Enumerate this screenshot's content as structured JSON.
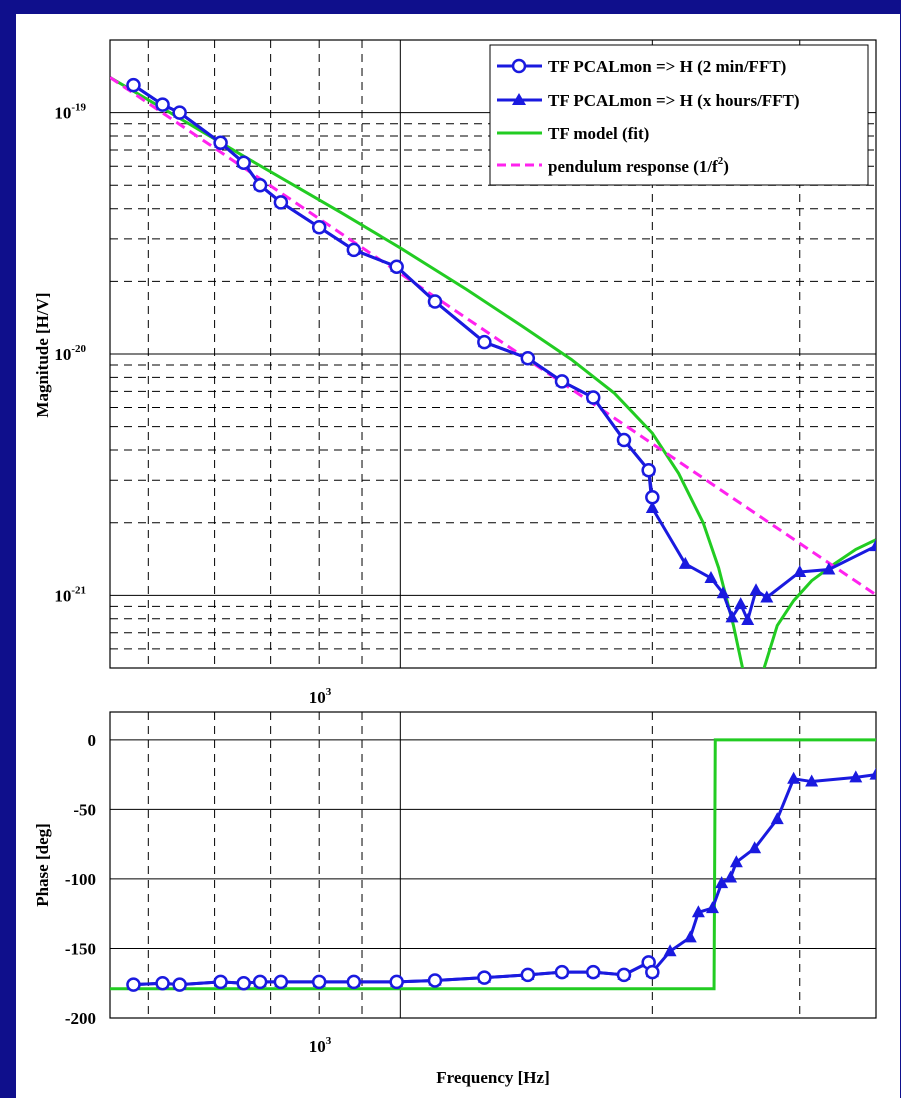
{
  "colors": {
    "background": "#0f0f8c",
    "panel": "#ffffff",
    "blue": "#1a1adf",
    "green": "#22cc22",
    "magenta": "#ff22ee",
    "grid": "#000000"
  },
  "chart_data": [
    {
      "type": "line",
      "panel": "magnitude",
      "xlabel": "",
      "ylabel": "Magnitude [H/V]",
      "xscale": "log",
      "yscale": "log",
      "xlim": [
        450,
        3700
      ],
      "ylim": [
        5e-22,
        2e-19
      ],
      "x_tick_labels": [
        {
          "base": "10",
          "exp": "3",
          "value": 1000
        }
      ],
      "y_tick_labels": [
        {
          "base": "10",
          "exp": "-19",
          "value": 1e-19
        },
        {
          "base": "10",
          "exp": "-20",
          "value": 1e-20
        },
        {
          "base": "10",
          "exp": "-21",
          "value": 1e-21
        }
      ],
      "grid": true,
      "legend_position": "top-right",
      "legend": [
        {
          "label": "TF PCALmon => H (2 min/FFT)",
          "marker": "circle",
          "color": "#1a1adf",
          "style": "solid"
        },
        {
          "label": "TF PCALmon => H (x hours/FFT)",
          "marker": "triangle",
          "color": "#1a1adf",
          "style": "solid"
        },
        {
          "label": "TF model (fit)",
          "marker": "none",
          "color": "#22cc22",
          "style": "solid"
        },
        {
          "label": "pendulum response (1/f",
          "label_sup": "2",
          "label_end": ")",
          "marker": "none",
          "color": "#ff22ee",
          "style": "dashed"
        }
      ],
      "series": [
        {
          "name": "TF PCALmon => H (2 min/FFT)",
          "marker": "circle",
          "x": [
            480,
            520,
            545,
            610,
            650,
            680,
            720,
            800,
            880,
            990,
            1100,
            1260,
            1420,
            1560,
            1700,
            1850,
            1980,
            2000
          ],
          "y": [
            1.3e-19,
            1.08e-19,
            1e-19,
            7.5e-20,
            6.2e-20,
            5e-20,
            4.25e-20,
            3.35e-20,
            2.7e-20,
            2.3e-20,
            1.65e-20,
            1.12e-20,
            9.6e-21,
            7.7e-21,
            6.6e-21,
            4.4e-21,
            3.3e-21,
            2.55e-21
          ]
        },
        {
          "name": "TF PCALmon => H (x hours/FFT)",
          "marker": "triangle",
          "x": [
            480,
            520,
            545,
            610,
            650,
            680,
            720,
            800,
            880,
            990,
            1100,
            1260,
            1420,
            1560,
            1700,
            1850,
            1980,
            2000,
            2190,
            2350,
            2430,
            2490,
            2550,
            2600,
            2660,
            2740,
            3000,
            3250,
            3700
          ],
          "y": [
            1.3e-19,
            1.08e-19,
            1e-19,
            7.5e-20,
            6.2e-20,
            5e-20,
            4.25e-20,
            3.35e-20,
            2.7e-20,
            2.3e-20,
            1.65e-20,
            1.12e-20,
            9.6e-21,
            7.7e-21,
            6.6e-21,
            4.4e-21,
            3.3e-21,
            2.3e-21,
            1.35e-21,
            1.18e-21,
            1.02e-21,
            8.1e-22,
            9.2e-22,
            7.9e-22,
            1.05e-21,
            9.8e-22,
            1.25e-21,
            1.28e-21,
            1.6e-21
          ]
        },
        {
          "name": "TF model (fit)",
          "marker": "none",
          "x": [
            450,
            550,
            650,
            750,
            850,
            1000,
            1200,
            1400,
            1600,
            1800,
            2000,
            2150,
            2300,
            2400,
            2500,
            2580,
            2650,
            2720,
            2820,
            2950,
            3100,
            3300,
            3500,
            3700
          ],
          "y": [
            1.4e-19,
            9.3e-20,
            6.6e-20,
            4.95e-20,
            3.85e-20,
            2.75e-20,
            1.85e-20,
            1.3e-20,
            9.5e-21,
            6.9e-21,
            4.7e-21,
            3.2e-21,
            2e-21,
            1.3e-21,
            7.5e-22,
            4.5e-22,
            3e-22,
            5e-22,
            7.5e-22,
            9.5e-22,
            1.15e-21,
            1.35e-21,
            1.55e-21,
            1.7e-21
          ]
        },
        {
          "name": "pendulum response (1/f^2)",
          "marker": "none",
          "style": "dashed",
          "x": [
            450,
            3700
          ],
          "y": [
            1.4e-19,
            1.005e-21
          ]
        }
      ]
    },
    {
      "type": "line",
      "panel": "phase",
      "xlabel": "Frequency [Hz]",
      "ylabel": "Phase [deg]",
      "xscale": "log",
      "xlim": [
        450,
        3700
      ],
      "ylim": [
        -200,
        20
      ],
      "x_tick_labels": [
        {
          "base": "10",
          "exp": "3",
          "value": 1000
        }
      ],
      "y_tick_labels": [
        "0",
        "-50",
        "-100",
        "-150",
        "-200"
      ],
      "y_ticks": [
        0,
        -50,
        -100,
        -150,
        -200
      ],
      "grid": true,
      "series": [
        {
          "name": "TF PCALmon => H (2 min/FFT)",
          "marker": "circle",
          "x": [
            480,
            520,
            545,
            610,
            650,
            680,
            720,
            800,
            880,
            990,
            1100,
            1260,
            1420,
            1560,
            1700,
            1850,
            1980,
            2000
          ],
          "y": [
            -176,
            -175,
            -176,
            -174,
            -175,
            -174,
            -174,
            -174,
            -174,
            -174,
            -173,
            -171,
            -169,
            -167,
            -167,
            -169,
            -160,
            -167
          ]
        },
        {
          "name": "TF PCALmon => H (x hours/FFT)",
          "marker": "triangle",
          "x": [
            480,
            520,
            545,
            610,
            650,
            680,
            720,
            800,
            880,
            990,
            1100,
            1260,
            1420,
            1560,
            1700,
            1850,
            1980,
            2000,
            2100,
            2220,
            2270,
            2360,
            2420,
            2480,
            2520,
            2650,
            2820,
            2950,
            3100,
            3500,
            3700
          ],
          "y": [
            -176,
            -175,
            -176,
            -174,
            -175,
            -174,
            -174,
            -174,
            -174,
            -174,
            -173,
            -171,
            -169,
            -167,
            -167,
            -169,
            -160,
            -167,
            -152,
            -142,
            -124,
            -121,
            -103,
            -99,
            -88,
            -78,
            -57,
            -28,
            -30,
            -27,
            -25
          ]
        },
        {
          "name": "TF model (fit)",
          "marker": "none",
          "x": [
            450,
            2370,
            2378,
            3700
          ],
          "y": [
            -179,
            -179,
            0,
            0
          ]
        }
      ]
    }
  ]
}
